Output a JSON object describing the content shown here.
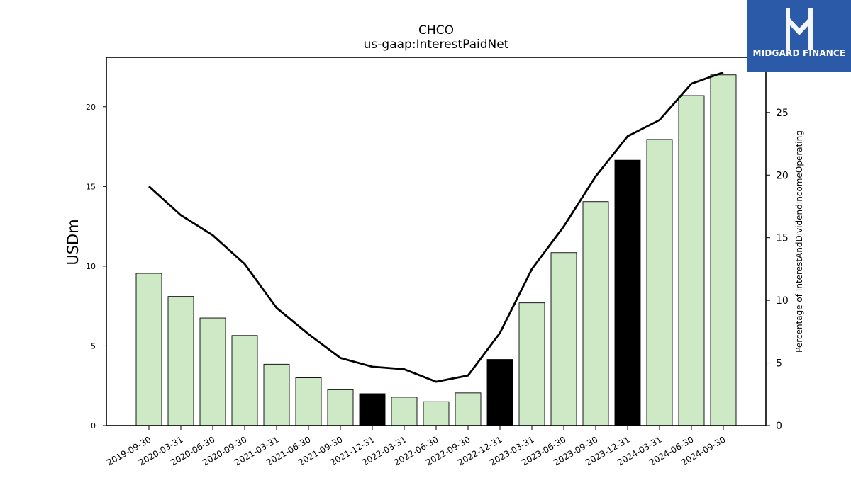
{
  "titles": {
    "line1": "CHCO",
    "line2": "us-gaap:InterestPaidNet"
  },
  "logo": {
    "text": "MIDGARD FINANCE",
    "color": "#2b5aa8"
  },
  "chart_data": {
    "type": "bar",
    "categories": [
      "2019-09-30",
      "2020-03-31",
      "2020-06-30",
      "2020-09-30",
      "2021-03-31",
      "2021-06-30",
      "2021-09-30",
      "2021-12-31",
      "2022-03-31",
      "2022-06-30",
      "2022-09-30",
      "2022-12-31",
      "2023-03-31",
      "2023-06-30",
      "2023-09-30",
      "2023-12-31",
      "2024-03-31",
      "2024-06-30",
      "2024-09-30"
    ],
    "series": [
      {
        "values": [
          9.55,
          8.1,
          6.75,
          5.65,
          3.85,
          3.0,
          2.25,
          2.0,
          1.78,
          1.5,
          2.05,
          4.15,
          7.7,
          10.85,
          14.05,
          16.65,
          17.95,
          20.7,
          22.0
        ]
      }
    ],
    "highlighted": [
      "2021-12-31",
      "2022-12-31",
      "2023-12-31"
    ],
    "line_series": {
      "axis": "right",
      "values": [
        19.1,
        16.8,
        15.2,
        12.9,
        9.4,
        7.3,
        5.4,
        4.7,
        4.5,
        3.5,
        4.0,
        7.4,
        12.5,
        15.9,
        19.9,
        23.1,
        24.4,
        27.3,
        28.2
      ]
    },
    "ylabel": "USDm",
    "y2label": "Percentage of InterestAndDividendIncomeOperating",
    "ylim": [
      0,
      23.1
    ],
    "y2lim": [
      0,
      29.4
    ],
    "yticks": [
      0,
      5,
      10,
      15,
      20
    ],
    "y2ticks": [
      0,
      5,
      10,
      15,
      20,
      25
    ],
    "colors": {
      "bar": "#cde9c6",
      "bar_highlight": "#000000",
      "line": "#000000"
    },
    "grid": false
  }
}
